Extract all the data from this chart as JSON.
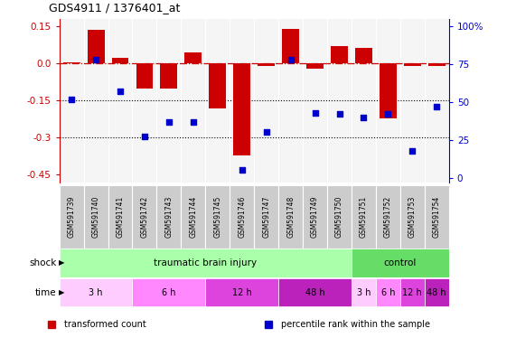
{
  "title": "GDS4911 / 1376401_at",
  "samples": [
    "GSM591739",
    "GSM591740",
    "GSM591741",
    "GSM591742",
    "GSM591743",
    "GSM591744",
    "GSM591745",
    "GSM591746",
    "GSM591747",
    "GSM591748",
    "GSM591749",
    "GSM591750",
    "GSM591751",
    "GSM591752",
    "GSM591753",
    "GSM591754"
  ],
  "bar_values": [
    0.005,
    0.135,
    0.025,
    -0.1,
    -0.1,
    0.045,
    -0.18,
    -0.37,
    -0.01,
    0.14,
    -0.02,
    0.07,
    0.065,
    -0.22,
    -0.01,
    -0.01
  ],
  "dot_values": [
    52,
    78,
    57,
    27,
    37,
    37,
    null,
    5,
    30,
    78,
    43,
    42,
    40,
    42,
    18,
    47
  ],
  "bar_color": "#cc0000",
  "dot_color": "#0000cc",
  "ylim_left": [
    -0.48,
    0.18
  ],
  "ylim_right": [
    -3,
    105
  ],
  "yticks_left": [
    -0.45,
    -0.3,
    -0.15,
    0.0,
    0.15
  ],
  "yticks_right": [
    0,
    25,
    50,
    75,
    100
  ],
  "hline_y": 0.0,
  "dotted_lines": [
    -0.15,
    -0.3
  ],
  "bg_color": "#ffffff",
  "shock_tbi_color": "#aaffaa",
  "shock_ctrl_color": "#66dd66",
  "time_colors": [
    "#ffccff",
    "#ff88ff",
    "#dd44dd",
    "#bb22bb"
  ],
  "shock_row": [
    {
      "label": "traumatic brain injury",
      "start": 0,
      "end": 12
    },
    {
      "label": "control",
      "start": 12,
      "end": 16
    }
  ],
  "time_row": [
    {
      "label": "3 h",
      "start": 0,
      "end": 3,
      "shade": 0
    },
    {
      "label": "6 h",
      "start": 3,
      "end": 6,
      "shade": 1
    },
    {
      "label": "12 h",
      "start": 6,
      "end": 9,
      "shade": 2
    },
    {
      "label": "48 h",
      "start": 9,
      "end": 12,
      "shade": 3
    },
    {
      "label": "3 h",
      "start": 12,
      "end": 13,
      "shade": 0
    },
    {
      "label": "6 h",
      "start": 13,
      "end": 14,
      "shade": 1
    },
    {
      "label": "12 h",
      "start": 14,
      "end": 15,
      "shade": 2
    },
    {
      "label": "48 h",
      "start": 15,
      "end": 16,
      "shade": 3
    }
  ],
  "legend_items": [
    {
      "label": "transformed count",
      "color": "#cc0000"
    },
    {
      "label": "percentile rank within the sample",
      "color": "#0000cc"
    }
  ]
}
